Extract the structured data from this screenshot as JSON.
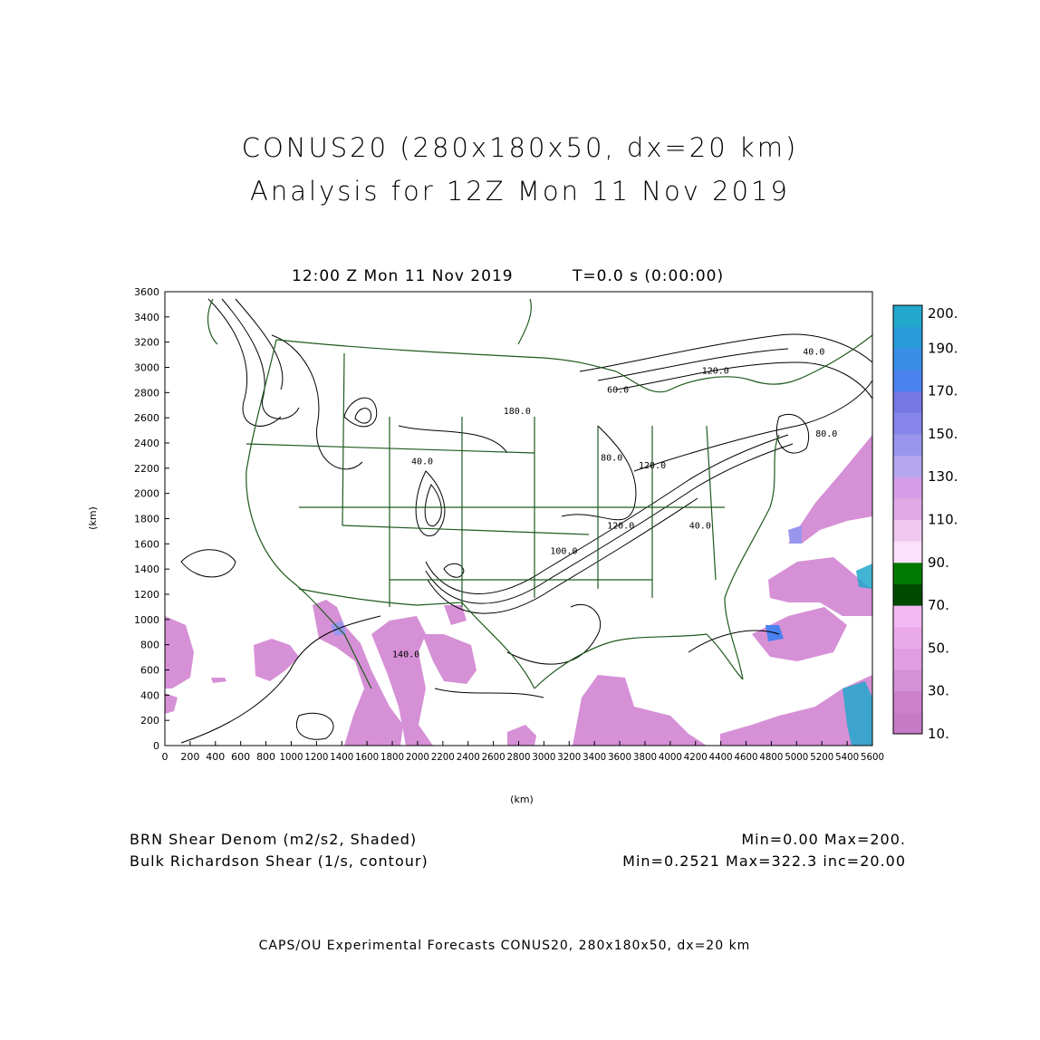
{
  "title": {
    "line1": "CONUS20 (280x180x50, dx=20 km)",
    "line2": "Analysis for 12Z Mon 11 Nov 2019"
  },
  "plot": {
    "time_label": "12:00 Z Mon 11 Nov 2019",
    "t_label": "T=0.0 s (0:00:00)",
    "xlabel": "(km)",
    "ylabel": "(km)",
    "x_ticks": [
      "0",
      "200",
      "400",
      "600",
      "800",
      "1000",
      "1200",
      "1400",
      "1600",
      "1800",
      "2000",
      "2200",
      "2400",
      "2600",
      "2800",
      "3000",
      "3200",
      "3400",
      "3600",
      "3800",
      "4000",
      "4200",
      "4400",
      "4600",
      "4800",
      "5000",
      "5200",
      "5400",
      "5600"
    ],
    "y_ticks": [
      "0",
      "200",
      "400",
      "600",
      "800",
      "1000",
      "1200",
      "1400",
      "1600",
      "1800",
      "2000",
      "2200",
      "2400",
      "2600",
      "2800",
      "3000",
      "3200",
      "3400",
      "3600"
    ],
    "contour_labels": [
      {
        "text": "180.0",
        "x": 2680,
        "y": 2630
      },
      {
        "text": "40.0",
        "x": 1950,
        "y": 2230
      },
      {
        "text": "80.0",
        "x": 3450,
        "y": 2260
      },
      {
        "text": "120.0",
        "x": 3750,
        "y": 2200
      },
      {
        "text": "120.0",
        "x": 3500,
        "y": 1720
      },
      {
        "text": "100.0",
        "x": 3050,
        "y": 1520
      },
      {
        "text": "40.0",
        "x": 4150,
        "y": 1720
      },
      {
        "text": "120.0",
        "x": 4250,
        "y": 2950
      },
      {
        "text": "40.0",
        "x": 5050,
        "y": 3100
      },
      {
        "text": "80.0",
        "x": 5150,
        "y": 2450
      },
      {
        "text": "140.0",
        "x": 1800,
        "y": 700
      },
      {
        "text": "60.0",
        "x": 3500,
        "y": 2800
      }
    ]
  },
  "colorbar": {
    "colors": [
      "#c47ac4",
      "#cc80cc",
      "#d690d6",
      "#e09ee0",
      "#eaaaea",
      "#f2b8f2",
      "#004a00",
      "#007a00",
      "#fce0fc",
      "#f0c8f0",
      "#e0aae6",
      "#d69ee8",
      "#b4a6ee",
      "#9a96ee",
      "#8686ea",
      "#7676e4",
      "#4a82f0",
      "#3a8ee8",
      "#2a9ad8",
      "#22a8cc"
    ],
    "labels": [
      "10.",
      "30.",
      "50.",
      "70.",
      "90.",
      "110.",
      "130.",
      "150.",
      "170.",
      "190.",
      "200."
    ]
  },
  "footer": {
    "left1": "BRN Shear Denom (m2/s2, Shaded)",
    "left2": "Bulk Richardson Shear (1/s, contour)",
    "right1": "Min=0.00 Max=200.",
    "right2": "Min=0.2521 Max=322.3 inc=20.00",
    "credit": "CAPS/OU Experimental Forecasts  CONUS20, 280x180x50, dx=20 km"
  }
}
